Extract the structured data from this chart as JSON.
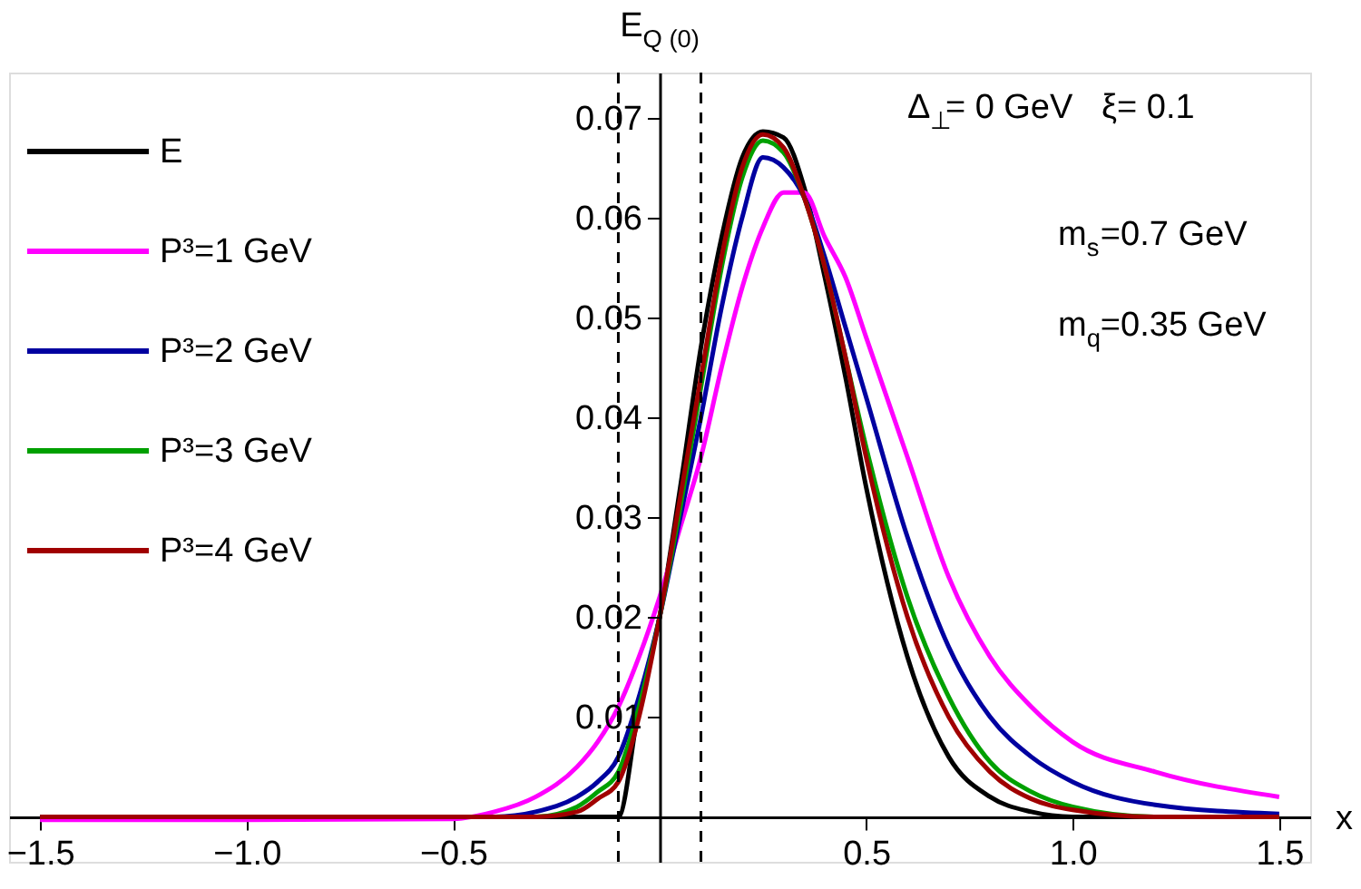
{
  "chart_data": {
    "type": "line",
    "ylabel": "E$_{Q (0)}$",
    "xlabel": "x",
    "annotations": [
      "Δ$_{⊥}$= 0 GeV   ξ= 0.1",
      "m$_{s}$=0.7 GeV",
      "m$_{q}$=0.35 GeV"
    ],
    "x": [
      -1.5,
      -1.0,
      -0.5,
      -0.4,
      -0.3,
      -0.2,
      -0.15,
      -0.1,
      -0.05,
      0,
      0.05,
      0.1,
      0.15,
      0.2,
      0.25,
      0.3,
      0.35,
      0.4,
      0.45,
      0.5,
      0.6,
      0.7,
      0.8,
      0.9,
      1.0,
      1.2,
      1.5
    ],
    "series": [
      {
        "name": "E",
        "color": "#000000",
        "values": [
          0,
          0,
          0,
          0,
          0,
          0,
          0,
          0,
          0.011,
          0.02,
          0.033,
          0.047,
          0.058,
          0.066,
          0.0686,
          0.068,
          0.063,
          0.054,
          0.044,
          0.033,
          0.016,
          0.006,
          0.002,
          0.0005,
          0,
          0,
          0
        ]
      },
      {
        "name": "P³=1 GeV",
        "color": "#ff00ff",
        "values": [
          -0.0003,
          -0.0003,
          -0.0002,
          0.0005,
          0.002,
          0.005,
          0.0075,
          0.011,
          0.016,
          0.022,
          0.029,
          0.036,
          0.045,
          0.053,
          0.059,
          0.0625,
          0.0625,
          0.058,
          0.054,
          0.048,
          0.036,
          0.024,
          0.016,
          0.011,
          0.0075,
          0.0045,
          0.002
        ]
      },
      {
        "name": "P³=2 GeV",
        "color": "#0000a0",
        "values": [
          null,
          null,
          0,
          0,
          0.0005,
          0.002,
          0.0035,
          0.006,
          0.012,
          0.02,
          0.03,
          0.04,
          0.051,
          0.06,
          0.066,
          0.065,
          0.062,
          0.056,
          0.049,
          0.042,
          0.028,
          0.017,
          0.01,
          0.006,
          0.0035,
          0.0012,
          0.0003
        ]
      },
      {
        "name": "P³=3 GeV",
        "color": "#00a000",
        "values": [
          null,
          null,
          null,
          0,
          0,
          0.001,
          0.0025,
          0.0045,
          0.011,
          0.02,
          0.031,
          0.043,
          0.055,
          0.064,
          0.0677,
          0.0665,
          0.062,
          0.055,
          0.046,
          0.037,
          0.022,
          0.012,
          0.0055,
          0.0025,
          0.001,
          0,
          0
        ]
      },
      {
        "name": "P³=4 GeV",
        "color": "#a00000",
        "values": [
          0,
          0,
          0,
          0,
          0,
          0.0005,
          0.0018,
          0.0035,
          0.01,
          0.02,
          0.032,
          0.044,
          0.056,
          0.065,
          0.0683,
          0.067,
          0.062,
          0.055,
          0.046,
          0.036,
          0.02,
          0.01,
          0.0045,
          0.0018,
          0.0007,
          0,
          0
        ]
      }
    ],
    "xlim": [
      -1.575,
      1.575
    ],
    "ylim": [
      -0.0045,
      0.0745
    ],
    "xticks": [
      {
        "value": -1.5,
        "label": "−1.5"
      },
      {
        "value": -1.0,
        "label": "−1.0"
      },
      {
        "value": -0.5,
        "label": "−0.5"
      },
      0.5,
      {
        "value": 1.0,
        "label": "1.0"
      },
      1.5
    ],
    "yticks": [
      0.01,
      0.02,
      0.03,
      0.04,
      0.05,
      0.06,
      0.07
    ],
    "ref_lines": [
      {
        "axis": "x",
        "value": -0.1,
        "color": "#000000",
        "line_style": "dashed"
      },
      {
        "axis": "x",
        "value": 0.1,
        "color": "#000000",
        "line_style": "dashed"
      }
    ],
    "legend": "top left",
    "grid": false,
    "marker": "none",
    "line_style": "solid"
  }
}
